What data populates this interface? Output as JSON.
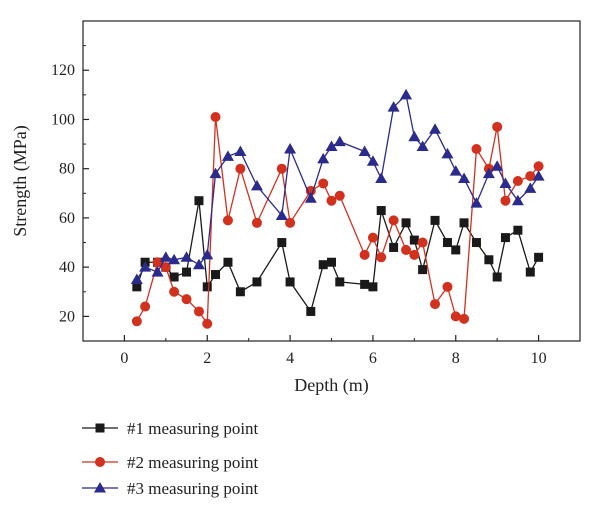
{
  "chart_data": {
    "type": "line",
    "xlabel": "Depth (m)",
    "ylabel": "Strength (MPa)",
    "xlim": [
      -1,
      11
    ],
    "ylim": [
      10,
      140
    ],
    "xticks": [
      0,
      2,
      4,
      6,
      8,
      10
    ],
    "yticks": [
      20,
      40,
      60,
      80,
      100,
      120
    ],
    "x_tick_labels": [
      "0",
      "2",
      "4",
      "6",
      "8",
      "10"
    ],
    "y_tick_labels": [
      "20",
      "40",
      "60",
      "80",
      "100",
      "120"
    ],
    "grid": false,
    "legend_position": "bottom",
    "series": [
      {
        "name": "#1 measuring point",
        "color": "#1a1a1a",
        "marker": "square",
        "x": [
          0.3,
          0.5,
          0.8,
          1.0,
          1.2,
          1.5,
          1.8,
          2.0,
          2.2,
          2.5,
          2.8,
          3.2,
          3.8,
          4.0,
          4.5,
          4.8,
          5.0,
          5.2,
          5.8,
          6.0,
          6.2,
          6.5,
          6.8,
          7.0,
          7.2,
          7.5,
          7.8,
          8.0,
          8.2,
          8.5,
          8.8,
          9.0,
          9.2,
          9.5,
          9.8,
          10.0
        ],
        "y": [
          32,
          42,
          42,
          40,
          36,
          38,
          67,
          32,
          37,
          42,
          30,
          34,
          50,
          34,
          22,
          41,
          42,
          34,
          33,
          32,
          63,
          48,
          58,
          51,
          39,
          59,
          50,
          47,
          58,
          50,
          43,
          36,
          52,
          55,
          38,
          44
        ]
      },
      {
        "name": "#2 measuring point",
        "color": "#d2311e",
        "marker": "circle",
        "x": [
          0.3,
          0.5,
          0.8,
          1.0,
          1.2,
          1.5,
          1.8,
          2.0,
          2.2,
          2.5,
          2.8,
          3.2,
          3.8,
          4.0,
          4.5,
          4.8,
          5.0,
          5.2,
          5.8,
          6.0,
          6.2,
          6.5,
          6.8,
          7.0,
          7.2,
          7.5,
          7.8,
          8.0,
          8.2,
          8.5,
          8.8,
          9.0,
          9.2,
          9.5,
          9.8,
          10.0
        ],
        "y": [
          18,
          24,
          42,
          40,
          30,
          27,
          22,
          17,
          101,
          59,
          80,
          58,
          80,
          58,
          71,
          74,
          67,
          69,
          45,
          52,
          44,
          59,
          47,
          45,
          50,
          25,
          32,
          20,
          19,
          88,
          80,
          97,
          67,
          75,
          77,
          81
        ]
      },
      {
        "name": "#3 measuring point",
        "color": "#2b2b8c",
        "marker": "triangle",
        "x": [
          0.3,
          0.5,
          0.8,
          1.0,
          1.2,
          1.5,
          1.8,
          2.0,
          2.2,
          2.5,
          2.8,
          3.2,
          3.8,
          4.0,
          4.5,
          4.8,
          5.0,
          5.2,
          5.8,
          6.0,
          6.2,
          6.5,
          6.8,
          7.0,
          7.2,
          7.5,
          7.8,
          8.0,
          8.2,
          8.5,
          8.8,
          9.0,
          9.2,
          9.5,
          9.8,
          10.0
        ],
        "y": [
          35,
          40,
          38,
          44,
          43,
          44,
          41,
          45,
          78,
          85,
          87,
          73,
          61,
          88,
          68,
          84,
          89,
          91,
          87,
          83,
          76,
          105,
          110,
          93,
          89,
          96,
          86,
          79,
          76,
          66,
          78,
          81,
          74,
          67,
          72,
          77
        ]
      }
    ]
  }
}
